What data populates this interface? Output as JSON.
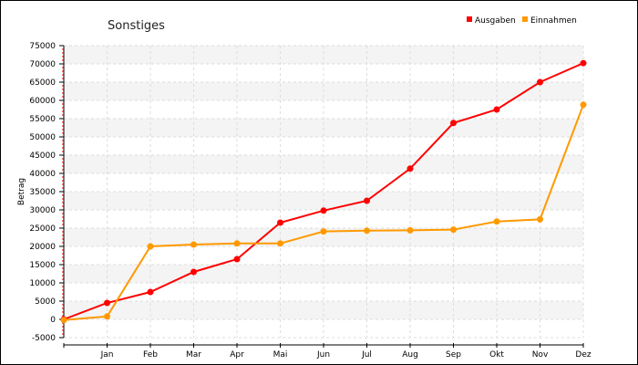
{
  "chart_data": {
    "type": "line",
    "title": "Sonstiges",
    "xlabel": "",
    "ylabel": "Betrag",
    "x": [
      "",
      "Jan",
      "Feb",
      "Mar",
      "Apr",
      "Mai",
      "Jun",
      "Jul",
      "Aug",
      "Sep",
      "Okt",
      "Nov",
      "Dez"
    ],
    "ylim": [
      -5000,
      75000
    ],
    "yticks": [
      -5000,
      0,
      5000,
      10000,
      15000,
      20000,
      25000,
      30000,
      35000,
      40000,
      45000,
      50000,
      55000,
      60000,
      65000,
      70000,
      75000
    ],
    "ytick_labels": [
      "-5000",
      "0",
      "5000",
      "10000",
      "15000",
      "20000",
      "25000",
      "30000",
      "35000",
      "40000",
      "45000",
      "50000",
      "55000",
      "60000",
      "65000",
      "70000",
      "75000"
    ],
    "grid": true,
    "legend_position": "top-right",
    "series": [
      {
        "name": "Ausgaben",
        "color": "#ff0000",
        "values": [
          0,
          4500,
          7500,
          13000,
          16500,
          26500,
          29800,
          32500,
          41300,
          53800,
          57500,
          65000,
          70200
        ]
      },
      {
        "name": "Einnahmen",
        "color": "#ff9900",
        "values": [
          -200,
          800,
          20000,
          20500,
          20800,
          20800,
          24100,
          24300,
          24400,
          24600,
          26800,
          27400,
          58800
        ]
      }
    ]
  }
}
